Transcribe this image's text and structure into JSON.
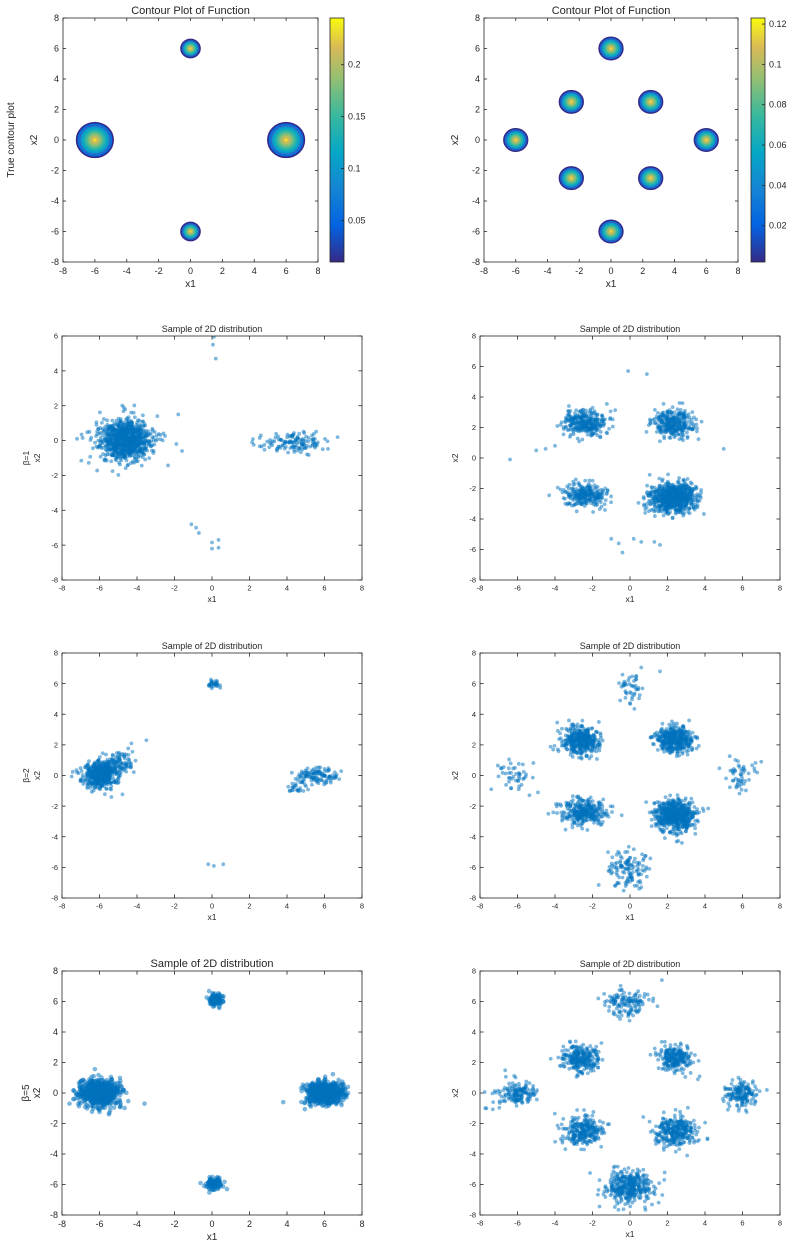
{
  "chart_data": [
    {
      "type": "contour",
      "title": "Contour Plot of Function",
      "xlabel": "x1",
      "ylabel": "x2",
      "row_label": "True contour plot",
      "xlim": [
        -8,
        8
      ],
      "ylim": [
        -8,
        8
      ],
      "xticks": [
        -8,
        -6,
        -4,
        -2,
        0,
        2,
        4,
        6,
        8
      ],
      "yticks": [
        -8,
        -6,
        -4,
        -2,
        0,
        2,
        4,
        6,
        8
      ],
      "colormap": "parula",
      "colorbar_ticks": [
        0.05,
        0.1,
        0.15,
        0.2
      ],
      "colorbar_range": [
        0.01,
        0.245
      ],
      "centers": [
        {
          "x": -6,
          "y": 0,
          "r": 1.15
        },
        {
          "x": 6,
          "y": 0,
          "r": 1.15
        },
        {
          "x": 0,
          "y": 6,
          "r": 0.6
        },
        {
          "x": 0,
          "y": -6,
          "r": 0.6
        }
      ]
    },
    {
      "type": "contour",
      "title": "Contour Plot of Function",
      "xlabel": "x1",
      "ylabel": "x2",
      "xlim": [
        -8,
        8
      ],
      "ylim": [
        -8,
        8
      ],
      "xticks": [
        -8,
        -6,
        -4,
        -2,
        0,
        2,
        4,
        6,
        8
      ],
      "yticks": [
        -8,
        -6,
        -4,
        -2,
        0,
        2,
        4,
        6,
        8
      ],
      "colormap": "parula",
      "colorbar_ticks": [
        0.02,
        0.04,
        0.06,
        0.08,
        0.1,
        0.12
      ],
      "colorbar_range": [
        0.002,
        0.123
      ],
      "centers": [
        {
          "x": 0,
          "y": 6,
          "r": 0.75
        },
        {
          "x": 0,
          "y": -6,
          "r": 0.75
        },
        {
          "x": 6,
          "y": 0,
          "r": 0.75
        },
        {
          "x": -6,
          "y": 0,
          "r": 0.75
        },
        {
          "x": 2.5,
          "y": 2.5,
          "r": 0.75
        },
        {
          "x": -2.5,
          "y": 2.5,
          "r": 0.75
        },
        {
          "x": 2.5,
          "y": -2.5,
          "r": 0.75
        },
        {
          "x": -2.5,
          "y": -2.5,
          "r": 0.75
        }
      ]
    },
    {
      "type": "scatter",
      "title": "Sample of 2D distribution",
      "xlabel": "x1",
      "ylabel": "x2",
      "row_label": "β=1",
      "xlim": [
        -8,
        8
      ],
      "ylim": [
        -8,
        6
      ],
      "xticks": [
        -8,
        -6,
        -4,
        -2,
        0,
        2,
        4,
        6,
        8
      ],
      "yticks": [
        -8,
        -6,
        -4,
        -2,
        0,
        2,
        4,
        6
      ],
      "clusters": [
        {
          "cx": -4.6,
          "cy": 0.0,
          "sx": 0.7,
          "sy": 0.6,
          "n": 900
        },
        {
          "cx": 4.3,
          "cy": -0.1,
          "sx": 0.95,
          "sy": 0.3,
          "n": 130
        }
      ],
      "points": [
        [
          0.1,
          5.95
        ],
        [
          0.05,
          5.5
        ],
        [
          0.2,
          4.7
        ],
        [
          -1.1,
          -4.8
        ],
        [
          -0.85,
          -5.0
        ],
        [
          -0.7,
          -5.3
        ],
        [
          0.0,
          -5.85
        ],
        [
          0.0,
          -6.2
        ],
        [
          0.35,
          -5.7
        ],
        [
          0.35,
          -6.15
        ],
        [
          -7.2,
          0.1
        ],
        [
          -6.9,
          0.15
        ],
        [
          -1.8,
          1.5
        ],
        [
          -1.9,
          -0.2
        ],
        [
          -1.6,
          -0.6
        ]
      ]
    },
    {
      "type": "scatter",
      "title": "Sample of 2D distribution",
      "xlabel": "x1",
      "ylabel": "x2",
      "xlim": [
        -8,
        8
      ],
      "ylim": [
        -8,
        8
      ],
      "xticks": [
        -8,
        -6,
        -4,
        -2,
        0,
        2,
        4,
        6,
        8
      ],
      "yticks": [
        -8,
        -6,
        -4,
        -2,
        0,
        2,
        4,
        6,
        8
      ],
      "clusters": [
        {
          "cx": -2.4,
          "cy": 2.3,
          "sx": 0.55,
          "sy": 0.45,
          "n": 300
        },
        {
          "cx": 2.3,
          "cy": 2.3,
          "sx": 0.55,
          "sy": 0.45,
          "n": 300
        },
        {
          "cx": -2.4,
          "cy": -2.4,
          "sx": 0.6,
          "sy": 0.4,
          "n": 250
        },
        {
          "cx": 2.3,
          "cy": -2.6,
          "sx": 0.6,
          "sy": 0.5,
          "n": 700
        }
      ],
      "points": [
        [
          -0.1,
          5.7
        ],
        [
          0.9,
          5.5
        ],
        [
          -6.4,
          -0.1
        ],
        [
          -5.0,
          0.5
        ],
        [
          -4.5,
          0.6
        ],
        [
          -4.0,
          0.8
        ],
        [
          5.0,
          0.6
        ],
        [
          -0.4,
          -6.2
        ],
        [
          -0.6,
          -5.6
        ],
        [
          0.2,
          -5.3
        ],
        [
          0.6,
          -5.5
        ],
        [
          -1.0,
          -5.3
        ],
        [
          1.3,
          -5.5
        ],
        [
          1.6,
          -5.7
        ]
      ]
    },
    {
      "type": "scatter",
      "title": "Sample of 2D distribution",
      "xlabel": "x1",
      "ylabel": "x2",
      "row_label": "β=2",
      "xlim": [
        -8,
        8
      ],
      "ylim": [
        -8,
        8
      ],
      "xticks": [
        -8,
        -6,
        -4,
        -2,
        0,
        2,
        4,
        6,
        8
      ],
      "yticks": [
        -8,
        -6,
        -4,
        -2,
        0,
        2,
        4,
        6,
        8
      ],
      "clusters": [
        {
          "cx": -5.9,
          "cy": 0.1,
          "sx": 0.45,
          "sy": 0.45,
          "n": 550
        },
        {
          "cx": -4.9,
          "cy": 0.9,
          "sx": 0.5,
          "sy": 0.35,
          "n": 70
        },
        {
          "cx": 5.6,
          "cy": 0.0,
          "sx": 0.55,
          "sy": 0.25,
          "n": 110
        },
        {
          "cx": 4.4,
          "cy": -0.8,
          "sx": 0.35,
          "sy": 0.25,
          "n": 25
        },
        {
          "cx": 0.1,
          "cy": 6.0,
          "sx": 0.2,
          "sy": 0.15,
          "n": 30
        }
      ],
      "points": [
        [
          -0.2,
          -5.8
        ],
        [
          0.1,
          -5.9
        ],
        [
          0.6,
          -5.8
        ],
        [
          -3.5,
          2.3
        ],
        [
          -4.3,
          2.1
        ]
      ]
    },
    {
      "type": "scatter",
      "title": "Sample of 2D distribution",
      "xlabel": "x1",
      "ylabel": "x2",
      "xlim": [
        -8,
        8
      ],
      "ylim": [
        -8,
        8
      ],
      "xticks": [
        -8,
        -6,
        -4,
        -2,
        0,
        2,
        4,
        6,
        8
      ],
      "yticks": [
        -8,
        -6,
        -4,
        -2,
        0,
        2,
        4,
        6,
        8
      ],
      "clusters": [
        {
          "cx": -2.6,
          "cy": 2.3,
          "sx": 0.5,
          "sy": 0.45,
          "n": 400
        },
        {
          "cx": 2.4,
          "cy": 2.3,
          "sx": 0.5,
          "sy": 0.45,
          "n": 400
        },
        {
          "cx": -2.5,
          "cy": -2.4,
          "sx": 0.55,
          "sy": 0.45,
          "n": 300
        },
        {
          "cx": 2.4,
          "cy": -2.6,
          "sx": 0.55,
          "sy": 0.5,
          "n": 600
        },
        {
          "cx": 0.0,
          "cy": 5.8,
          "sx": 0.35,
          "sy": 0.5,
          "n": 45
        },
        {
          "cx": -0.1,
          "cy": -6.1,
          "sx": 0.55,
          "sy": 0.55,
          "n": 120
        },
        {
          "cx": -6.2,
          "cy": 0.0,
          "sx": 0.45,
          "sy": 0.45,
          "n": 45
        },
        {
          "cx": 5.9,
          "cy": 0.0,
          "sx": 0.4,
          "sy": 0.5,
          "n": 50
        }
      ],
      "points": [
        [
          1.6,
          6.8
        ],
        [
          -7.4,
          -0.9
        ],
        [
          7.0,
          0.9
        ],
        [
          -0.8,
          -7.2
        ]
      ]
    },
    {
      "type": "scatter",
      "title": "Sample of 2D distribution",
      "xlabel": "x1",
      "ylabel": "x2",
      "row_label": "β=5",
      "xlim": [
        -8,
        8
      ],
      "ylim": [
        -8,
        8
      ],
      "xticks": [
        -8,
        -6,
        -4,
        -2,
        0,
        2,
        4,
        6,
        8
      ],
      "yticks": [
        -8,
        -6,
        -4,
        -2,
        0,
        2,
        4,
        6,
        8
      ],
      "clusters": [
        {
          "cx": -6.0,
          "cy": 0.0,
          "sx": 0.55,
          "sy": 0.45,
          "n": 650
        },
        {
          "cx": 6.0,
          "cy": 0.0,
          "sx": 0.5,
          "sy": 0.35,
          "n": 650
        },
        {
          "cx": 0.2,
          "cy": 6.1,
          "sx": 0.2,
          "sy": 0.2,
          "n": 120
        },
        {
          "cx": 0.1,
          "cy": -5.9,
          "sx": 0.2,
          "sy": 0.2,
          "n": 120
        }
      ],
      "points": [
        [
          -7.6,
          -0.7
        ],
        [
          -3.6,
          -0.7
        ],
        [
          3.8,
          -0.6
        ],
        [
          0.8,
          -6.3
        ]
      ]
    },
    {
      "type": "scatter",
      "title": "Sample of 2D distribution",
      "xlabel": "x1",
      "ylabel": "x2",
      "xlim": [
        -8,
        8
      ],
      "ylim": [
        -8,
        8
      ],
      "xticks": [
        -8,
        -6,
        -4,
        -2,
        0,
        2,
        4,
        6,
        8
      ],
      "yticks": [
        -8,
        -6,
        -4,
        -2,
        0,
        2,
        4,
        6,
        8
      ],
      "clusters": [
        {
          "cx": -2.6,
          "cy": 2.3,
          "sx": 0.5,
          "sy": 0.45,
          "n": 260
        },
        {
          "cx": 2.4,
          "cy": 2.3,
          "sx": 0.45,
          "sy": 0.45,
          "n": 230
        },
        {
          "cx": -2.5,
          "cy": -2.5,
          "sx": 0.55,
          "sy": 0.5,
          "n": 260
        },
        {
          "cx": 2.4,
          "cy": -2.5,
          "sx": 0.55,
          "sy": 0.5,
          "n": 300
        },
        {
          "cx": -0.1,
          "cy": 5.9,
          "sx": 0.55,
          "sy": 0.4,
          "n": 130
        },
        {
          "cx": -0.1,
          "cy": -6.1,
          "sx": 0.65,
          "sy": 0.55,
          "n": 350
        },
        {
          "cx": -6.1,
          "cy": -0.1,
          "sx": 0.6,
          "sy": 0.45,
          "n": 150
        },
        {
          "cx": 5.9,
          "cy": 0.0,
          "sx": 0.45,
          "sy": 0.45,
          "n": 160
        }
      ],
      "points": [
        [
          1.7,
          7.4
        ],
        [
          -7.3,
          -0.6
        ],
        [
          7.3,
          0.2
        ],
        [
          0.8,
          -7.5
        ]
      ]
    }
  ],
  "colors": {
    "marker": "#0072BD",
    "axis": "#262626"
  }
}
